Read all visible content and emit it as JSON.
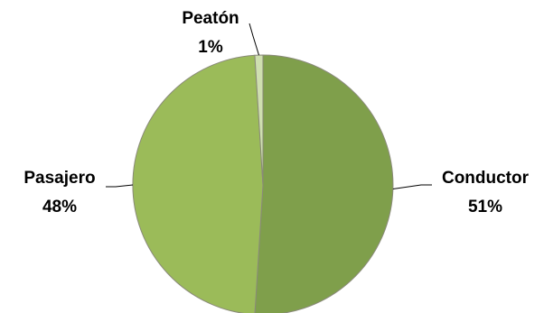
{
  "chart_data": {
    "type": "pie",
    "title": "",
    "legend": "none",
    "slices": [
      {
        "label": "Conductor",
        "percent_label": "51%",
        "value": 51,
        "color": "#7f9f4b"
      },
      {
        "label": "Pasajero",
        "percent_label": "48%",
        "value": 48,
        "color": "#9bbb59"
      },
      {
        "label": "Peatón",
        "percent_label": "1%",
        "value": 1,
        "color": "#cfdfb0"
      }
    ],
    "slice_border_color": "#8a8a7a",
    "leader_line_color": "#000000"
  }
}
